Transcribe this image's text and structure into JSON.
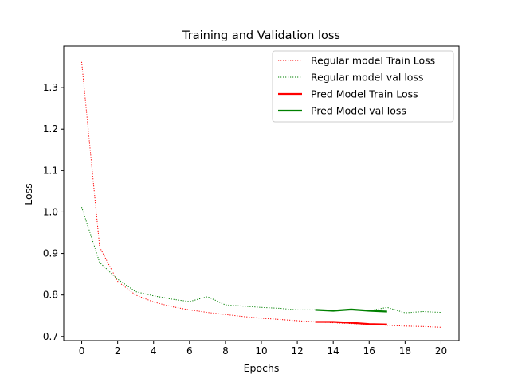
{
  "chart_data": {
    "type": "line",
    "title": "Training and Validation loss",
    "xlabel": "Epochs",
    "ylabel": "Loss",
    "xlim": [
      -1,
      21
    ],
    "ylim": [
      0.69,
      1.4
    ],
    "xticks": [
      0,
      2,
      4,
      6,
      8,
      10,
      12,
      14,
      16,
      18,
      20
    ],
    "yticks": [
      0.7,
      0.8,
      0.9,
      1.0,
      1.1,
      1.2,
      1.3
    ],
    "ytick_labels": [
      "0.7",
      "0.8",
      "0.9",
      "1.0",
      "1.1",
      "1.2",
      "1.3"
    ],
    "grid": false,
    "legend_position": "top-right",
    "series": [
      {
        "name": "Regular model Train Loss",
        "color": "#ff0000",
        "style": "dotted",
        "x": [
          0,
          1,
          2,
          3,
          4,
          5,
          6,
          7,
          8,
          9,
          10,
          11,
          12,
          13,
          14,
          15,
          16,
          17,
          18,
          19,
          20
        ],
        "y": [
          1.362,
          0.915,
          0.833,
          0.8,
          0.783,
          0.772,
          0.764,
          0.758,
          0.753,
          0.748,
          0.744,
          0.741,
          0.738,
          0.735,
          0.733,
          0.731,
          0.729,
          0.727,
          0.725,
          0.724,
          0.722
        ]
      },
      {
        "name": "Regular model val loss",
        "color": "#008000",
        "style": "dotted",
        "x": [
          0,
          1,
          2,
          3,
          4,
          5,
          6,
          7,
          8,
          9,
          10,
          11,
          12,
          13,
          14,
          15,
          16,
          17,
          18,
          19,
          20
        ],
        "y": [
          1.012,
          0.878,
          0.838,
          0.808,
          0.798,
          0.79,
          0.784,
          0.796,
          0.776,
          0.773,
          0.77,
          0.768,
          0.764,
          0.764,
          0.762,
          0.765,
          0.762,
          0.77,
          0.757,
          0.76,
          0.758
        ]
      },
      {
        "name": "Pred Model Train Loss",
        "color": "#ff0000",
        "style": "solid",
        "x": [
          13,
          14,
          15,
          16,
          17
        ],
        "y": [
          0.735,
          0.735,
          0.733,
          0.73,
          0.729
        ]
      },
      {
        "name": "Pred Model val loss",
        "color": "#008000",
        "style": "solid",
        "x": [
          13,
          14,
          15,
          16,
          17
        ],
        "y": [
          0.764,
          0.762,
          0.765,
          0.762,
          0.76
        ]
      }
    ]
  }
}
